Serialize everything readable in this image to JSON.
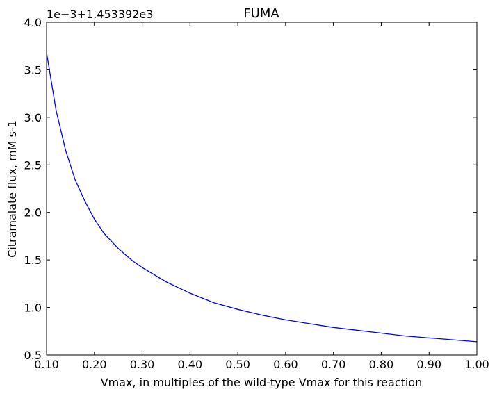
{
  "chart_data": {
    "type": "line",
    "title": "FUMA",
    "xlabel": "Vmax, in multiples of the wild-type Vmax for this reaction",
    "ylabel": "Citramalate flux, mM s-1",
    "offset_text": "1e−3+1.453392e3",
    "xlim": [
      0.1,
      1.0
    ],
    "ylim": [
      0.5,
      4.0
    ],
    "x_ticks": [
      0.1,
      0.2,
      0.3,
      0.4,
      0.5,
      0.6,
      0.7,
      0.8,
      0.9,
      1.0
    ],
    "x_tick_labels": [
      "0.10",
      "0.20",
      "0.30",
      "0.40",
      "0.50",
      "0.60",
      "0.70",
      "0.80",
      "0.90",
      "1.00"
    ],
    "y_ticks": [
      0.5,
      1.0,
      1.5,
      2.0,
      2.5,
      3.0,
      3.5,
      4.0
    ],
    "y_tick_labels": [
      "0.5",
      "1.0",
      "1.5",
      "2.0",
      "2.5",
      "3.0",
      "3.5",
      "4.0"
    ],
    "grid": false,
    "series": [
      {
        "color": "#0000ff",
        "x": [
          0.1,
          0.12,
          0.14,
          0.16,
          0.18,
          0.2,
          0.22,
          0.25,
          0.28,
          0.3,
          0.35,
          0.4,
          0.45,
          0.5,
          0.55,
          0.6,
          0.65,
          0.7,
          0.75,
          0.8,
          0.85,
          0.9,
          0.95,
          1.0
        ],
        "y": [
          3.68,
          3.07,
          2.65,
          2.34,
          2.12,
          1.93,
          1.78,
          1.62,
          1.49,
          1.42,
          1.27,
          1.15,
          1.05,
          0.98,
          0.92,
          0.87,
          0.83,
          0.79,
          0.76,
          0.73,
          0.7,
          0.68,
          0.66,
          0.64
        ]
      }
    ]
  }
}
